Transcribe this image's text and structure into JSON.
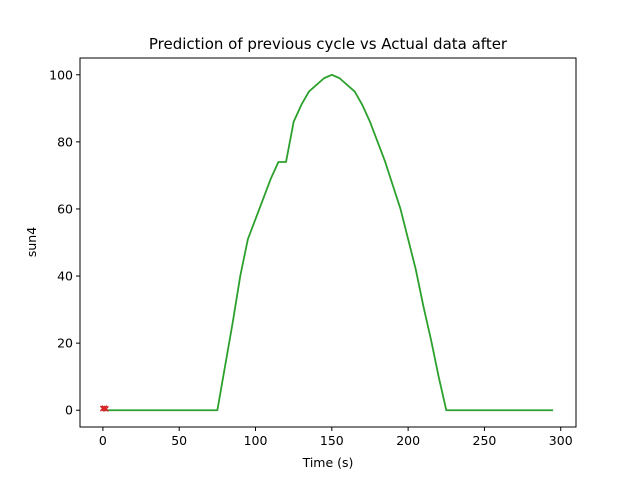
{
  "chart_data": {
    "type": "line",
    "title": "Prediction of previous cycle vs Actual data after",
    "xlabel": "Time (s)",
    "ylabel": "sun4",
    "xlim": [
      -15,
      310
    ],
    "ylim": [
      -5,
      105
    ],
    "xticks": [
      0,
      50,
      100,
      150,
      200,
      250,
      300
    ],
    "yticks": [
      0,
      20,
      40,
      60,
      80,
      100
    ],
    "grid": false,
    "legend": "none",
    "series": [
      {
        "color": "#2ca02c",
        "marker": "none",
        "points": [
          [
            0,
            0
          ],
          [
            75,
            0
          ],
          [
            80,
            13
          ],
          [
            85,
            26
          ],
          [
            90,
            40
          ],
          [
            95,
            51
          ],
          [
            100,
            57
          ],
          [
            105,
            63
          ],
          [
            110,
            69
          ],
          [
            115,
            74
          ],
          [
            120,
            74
          ],
          [
            125,
            86
          ],
          [
            130,
            91
          ],
          [
            135,
            95
          ],
          [
            140,
            97
          ],
          [
            145,
            99
          ],
          [
            150,
            100
          ],
          [
            155,
            99
          ],
          [
            160,
            97
          ],
          [
            165,
            95
          ],
          [
            170,
            91
          ],
          [
            175,
            86
          ],
          [
            180,
            80
          ],
          [
            185,
            74
          ],
          [
            190,
            67
          ],
          [
            195,
            60
          ],
          [
            200,
            51
          ],
          [
            205,
            42
          ],
          [
            210,
            31
          ],
          [
            215,
            21
          ],
          [
            220,
            10
          ],
          [
            225,
            0
          ],
          [
            295,
            0
          ]
        ]
      },
      {
        "color": "#d62728",
        "marker": "x",
        "points": [
          [
            0,
            0.5
          ],
          [
            1,
            0.6
          ],
          [
            2,
            0.4
          ]
        ]
      }
    ]
  }
}
